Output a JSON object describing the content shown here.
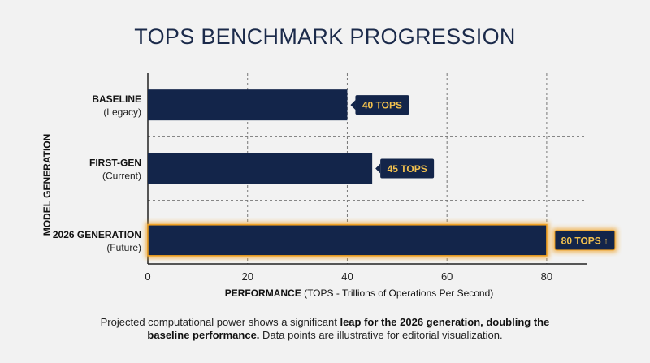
{
  "chart_data": {
    "type": "bar",
    "orientation": "horizontal",
    "title": "TOPS BENCHMARK PROGRESSION",
    "xlabel_bold": "PERFORMANCE",
    "xlabel_rest": " (TOPS - Trillions of Operations Per Second)",
    "ylabel": "MODEL GENERATION",
    "xlim": [
      0,
      88
    ],
    "xticks": [
      0,
      20,
      40,
      60,
      80
    ],
    "grid": "dashed",
    "categories": [
      {
        "name": "BASELINE",
        "sub": "(Legacy)"
      },
      {
        "name": "FIRST-GEN",
        "sub": "(Current)"
      },
      {
        "name": "2026 GENERATION",
        "sub": "(Future)"
      }
    ],
    "values": [
      40,
      45,
      80
    ],
    "data_labels": [
      "40 TOPS",
      "45 TOPS",
      "80 TOPS ↑"
    ],
    "highlight_index": 2
  },
  "caption": {
    "part1": "Projected computational power shows a significant ",
    "bold": "leap for the 2026 generation, doubling the baseline performance.",
    "part2": " Data points are illustrative for editorial visualization."
  },
  "colors": {
    "bar": "#13254a",
    "label_text": "#f2c14e",
    "highlight_glow": "#f0a020",
    "axis": "#222222",
    "grid": "#777777",
    "background": "#f2f2f2"
  }
}
